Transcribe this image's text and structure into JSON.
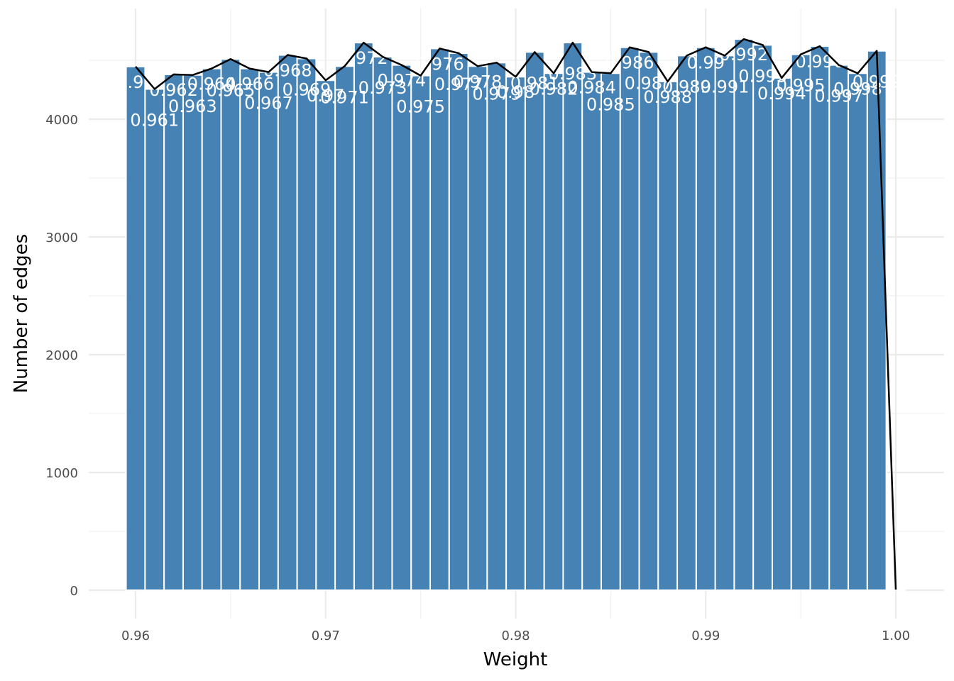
{
  "chart_data": {
    "type": "bar",
    "title": "",
    "xlabel": "Weight",
    "ylabel": "Number of edges",
    "xlim": [
      0.958,
      1.002
    ],
    "ylim": [
      0,
      4750
    ],
    "x_ticks": [
      "0.96",
      "0.97",
      "0.98",
      "0.99",
      "1.00"
    ],
    "x_tick_values": [
      0.96,
      0.97,
      0.98,
      0.99,
      1.0
    ],
    "y_ticks": [
      "0",
      "1000",
      "2000",
      "3000",
      "4000"
    ],
    "y_tick_values": [
      0,
      1000,
      2000,
      3000,
      4000
    ],
    "grid": true,
    "legend": "none",
    "bar_color": "#4682B4",
    "line_color": "#000000",
    "bars": [
      {
        "x": 0.96,
        "y": 4447,
        "label": "0.96"
      },
      {
        "x": 0.961,
        "y": 4256,
        "label": "0.961"
      },
      {
        "x": 0.962,
        "y": 4380,
        "label": "0.962"
      },
      {
        "x": 0.963,
        "y": 4375,
        "label": "0.963"
      },
      {
        "x": 0.964,
        "y": 4430,
        "label": "0.964"
      },
      {
        "x": 0.965,
        "y": 4510,
        "label": "0.965"
      },
      {
        "x": 0.966,
        "y": 4430,
        "label": "0.966"
      },
      {
        "x": 0.967,
        "y": 4400,
        "label": "0.967"
      },
      {
        "x": 0.968,
        "y": 4545,
        "label": "0.968"
      },
      {
        "x": 0.969,
        "y": 4515,
        "label": "0.969"
      },
      {
        "x": 0.97,
        "y": 4330,
        "label": "0.97"
      },
      {
        "x": 0.971,
        "y": 4450,
        "label": "0.971"
      },
      {
        "x": 0.972,
        "y": 4650,
        "label": "0.972"
      },
      {
        "x": 0.973,
        "y": 4530,
        "label": "0.973"
      },
      {
        "x": 0.974,
        "y": 4460,
        "label": "0.974"
      },
      {
        "x": 0.975,
        "y": 4370,
        "label": "0.975"
      },
      {
        "x": 0.976,
        "y": 4600,
        "label": "0.976"
      },
      {
        "x": 0.977,
        "y": 4560,
        "label": "0.977"
      },
      {
        "x": 0.978,
        "y": 4450,
        "label": "0.978"
      },
      {
        "x": 0.979,
        "y": 4480,
        "label": "0.979"
      },
      {
        "x": 0.98,
        "y": 4360,
        "label": "0.98"
      },
      {
        "x": 0.981,
        "y": 4570,
        "label": "0.981"
      },
      {
        "x": 0.982,
        "y": 4390,
        "label": "0.982"
      },
      {
        "x": 0.983,
        "y": 4650,
        "label": "0.983"
      },
      {
        "x": 0.984,
        "y": 4400,
        "label": "0.984"
      },
      {
        "x": 0.985,
        "y": 4390,
        "label": "0.985"
      },
      {
        "x": 0.986,
        "y": 4610,
        "label": "0.986"
      },
      {
        "x": 0.987,
        "y": 4570,
        "label": "0.987"
      },
      {
        "x": 0.988,
        "y": 4320,
        "label": "0.988"
      },
      {
        "x": 0.989,
        "y": 4540,
        "label": "0.989"
      },
      {
        "x": 0.99,
        "y": 4610,
        "label": "0.99"
      },
      {
        "x": 0.991,
        "y": 4540,
        "label": "0.991"
      },
      {
        "x": 0.992,
        "y": 4680,
        "label": "0.992"
      },
      {
        "x": 0.993,
        "y": 4630,
        "label": "0.993"
      },
      {
        "x": 0.994,
        "y": 4350,
        "label": "0.994"
      },
      {
        "x": 0.995,
        "y": 4550,
        "label": "0.995"
      },
      {
        "x": 0.996,
        "y": 4620,
        "label": "0.996"
      },
      {
        "x": 0.997,
        "y": 4460,
        "label": "0.997"
      },
      {
        "x": 0.998,
        "y": 4390,
        "label": "0.998"
      },
      {
        "x": 0.999,
        "y": 4580,
        "label": "0.999"
      },
      {
        "x": 1.0,
        "y": 5,
        "label": ""
      }
    ]
  }
}
